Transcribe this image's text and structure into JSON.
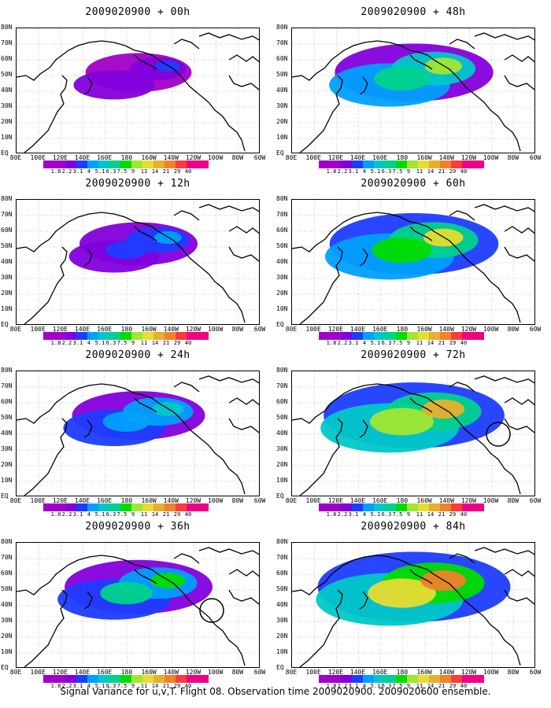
{
  "panels": [
    {
      "title": "2009020900 + 00h",
      "level": 0.1,
      "circle": false
    },
    {
      "title": "2009020900 + 12h",
      "level": 0.18,
      "circle": false
    },
    {
      "title": "2009020900 + 24h",
      "level": 0.28,
      "circle": false
    },
    {
      "title": "2009020900 + 36h",
      "level": 0.38,
      "circle": true
    },
    {
      "title": "2009020900 + 48h",
      "level": 0.45,
      "circle": false
    },
    {
      "title": "2009020900 + 60h",
      "level": 0.52,
      "circle": false
    },
    {
      "title": "2009020900 + 72h",
      "level": 0.6,
      "circle": true
    },
    {
      "title": "2009020900 + 84h",
      "level": 0.68,
      "circle": false
    }
  ],
  "lat_labels": [
    "80N",
    "70N",
    "60N",
    "50N",
    "40N",
    "30N",
    "20N",
    "10N",
    "EQ"
  ],
  "lon_labels": [
    "80E",
    "100E",
    "120E",
    "140E",
    "160E",
    "180",
    "160W",
    "140W",
    "120W",
    "100W",
    "80W",
    "60W"
  ],
  "colorbar": {
    "colors": [
      "#a000c8",
      "#8200dc",
      "#1e3cff",
      "#00a0ff",
      "#00c8c8",
      "#00d28c",
      "#00dc00",
      "#a0e632",
      "#e6dc32",
      "#e6af2d",
      "#f08228",
      "#fa3c3c",
      "#f00082"
    ],
    "ticks": [
      "1.8",
      "2.2",
      "3.1",
      "4",
      "5.1",
      "6.3",
      "7.5",
      "9",
      "11",
      "14",
      "21",
      "29",
      "40"
    ]
  },
  "footer": "Signal Variance for u,v,T. Flight 08. Observation time 2009020900. 2009020600 ensemble."
}
